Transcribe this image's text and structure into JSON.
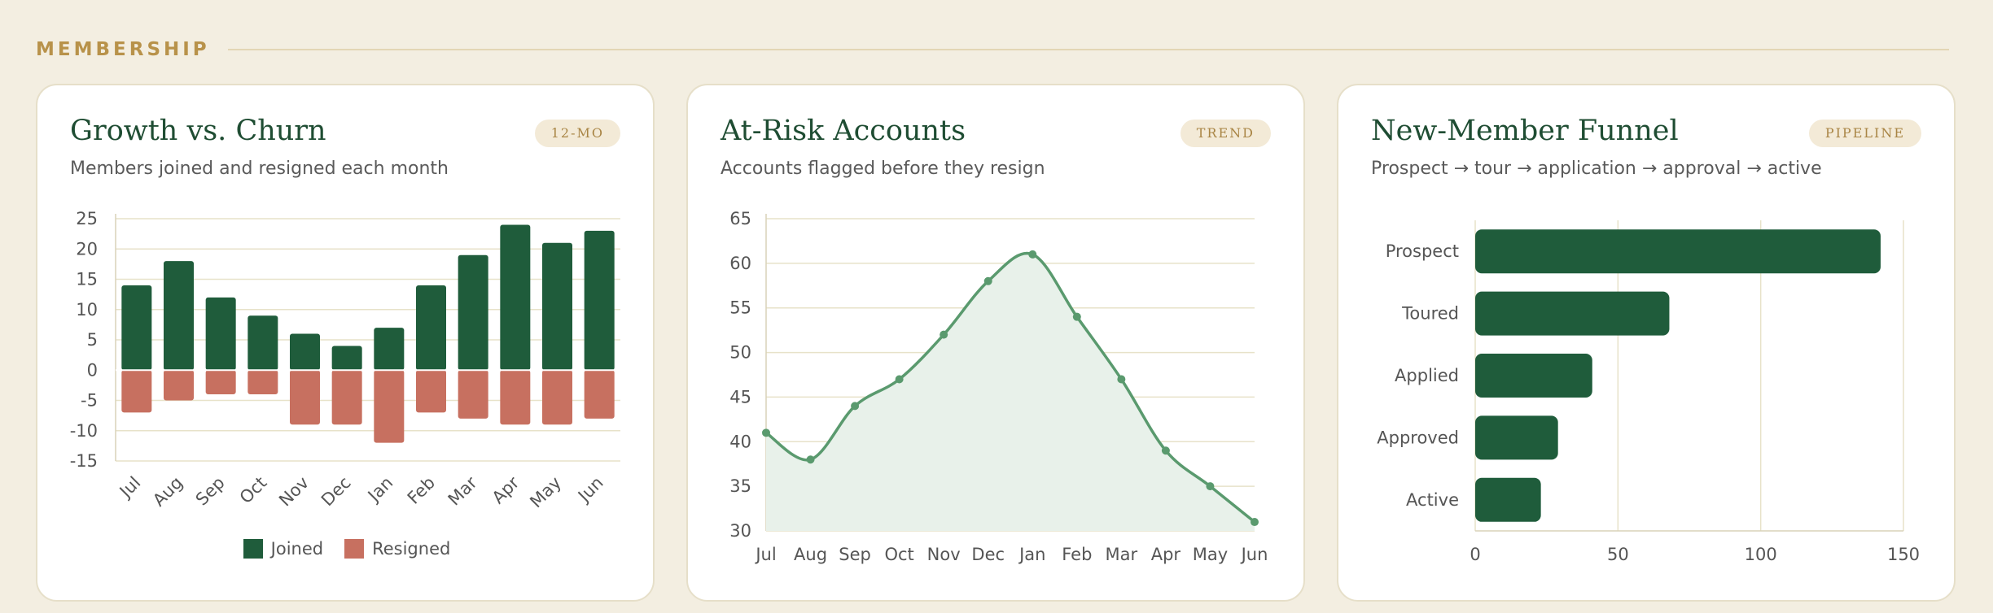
{
  "section": {
    "title": "MEMBERSHIP"
  },
  "colors": {
    "green": "#1f5c3b",
    "red": "#c77060",
    "line": "#5a9a6e",
    "area": "#e8f1ea",
    "grid": "#e7e2c9"
  },
  "cards": [
    {
      "title": "Growth vs. Churn",
      "subtitle": "Members joined and resigned each month",
      "badge": "12-MO"
    },
    {
      "title": "At-Risk Accounts",
      "subtitle": "Accounts flagged before they resign",
      "badge": "TREND"
    },
    {
      "title": "New-Member Funnel",
      "subtitle": "Prospect → tour → application → approval → active",
      "badge": "PIPELINE"
    }
  ],
  "chart_data": [
    {
      "type": "bar",
      "categories": [
        "Jul",
        "Aug",
        "Sep",
        "Oct",
        "Nov",
        "Dec",
        "Jan",
        "Feb",
        "Mar",
        "Apr",
        "May",
        "Jun"
      ],
      "series": [
        {
          "name": "Joined",
          "values": [
            14,
            18,
            12,
            9,
            6,
            4,
            7,
            14,
            19,
            24,
            21,
            23
          ]
        },
        {
          "name": "Resigned",
          "values": [
            -7,
            -5,
            -4,
            -4,
            -9,
            -9,
            -12,
            -7,
            -8,
            -9,
            -9,
            -8
          ]
        }
      ],
      "ylim": [
        -15,
        25
      ],
      "yticks": [
        25,
        20,
        15,
        10,
        5,
        0,
        -5,
        -10,
        -15
      ],
      "grid": true,
      "legend": "bottom"
    },
    {
      "type": "area",
      "categories": [
        "Jul",
        "Aug",
        "Sep",
        "Oct",
        "Nov",
        "Dec",
        "Jan",
        "Feb",
        "Mar",
        "Apr",
        "May",
        "Jun"
      ],
      "values": [
        41,
        38,
        44,
        47,
        52,
        58,
        61,
        54,
        47,
        39,
        35,
        31
      ],
      "ylim": [
        30,
        65
      ],
      "yticks": [
        65,
        60,
        55,
        50,
        45,
        40,
        35,
        30
      ],
      "grid": true
    },
    {
      "type": "bar",
      "orientation": "horizontal",
      "categories": [
        "Prospect",
        "Toured",
        "Applied",
        "Approved",
        "Active"
      ],
      "values": [
        142,
        68,
        41,
        29,
        23
      ],
      "xlim": [
        0,
        150
      ],
      "xticks": [
        0,
        50,
        100,
        150
      ],
      "grid": true
    }
  ]
}
